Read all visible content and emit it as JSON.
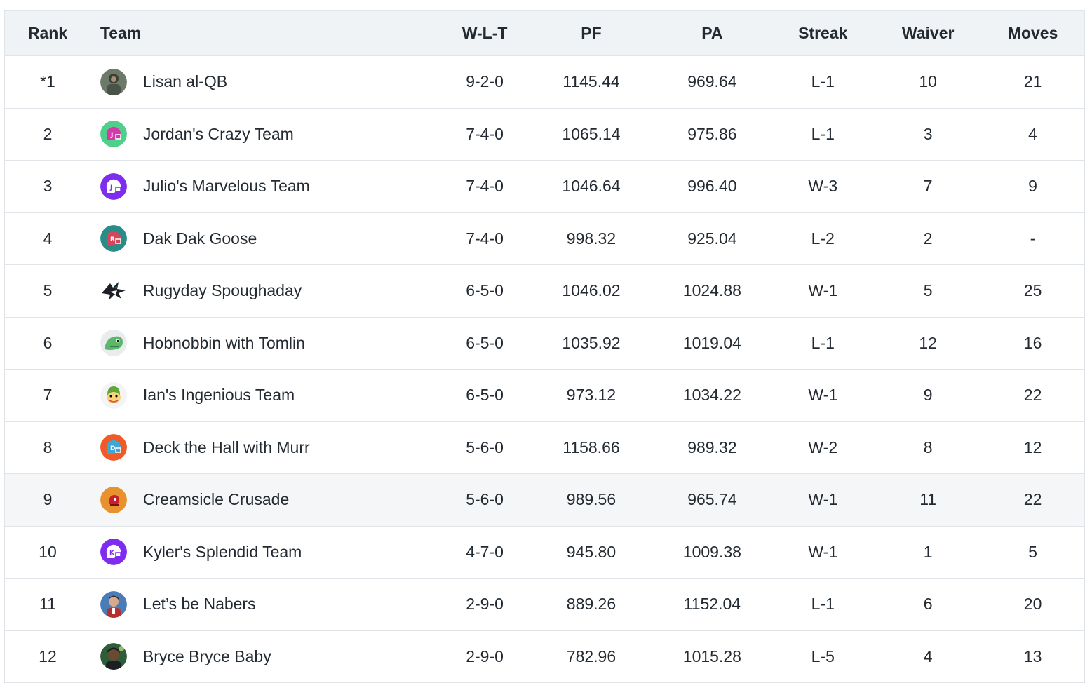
{
  "columns": {
    "rank": "Rank",
    "team": "Team",
    "wlt": "W-L-T",
    "pf": "PF",
    "pa": "PA",
    "streak": "Streak",
    "waiver": "Waiver",
    "moves": "Moves"
  },
  "rows": [
    {
      "rank": "*1",
      "team": "Lisan al-QB",
      "avatar_icon": "photo-avatar-icon",
      "wlt": "9-2-0",
      "pf": "1145.44",
      "pa": "969.64",
      "streak": "L-1",
      "waiver": "10",
      "moves": "21"
    },
    {
      "rank": "2",
      "team": "Jordan's Crazy Team",
      "avatar_icon": "helmet-avatar-icon",
      "wlt": "7-4-0",
      "pf": "1065.14",
      "pa": "975.86",
      "streak": "L-1",
      "waiver": "3",
      "moves": "4"
    },
    {
      "rank": "3",
      "team": "Julio's Marvelous Team",
      "avatar_icon": "helmet-avatar-icon",
      "wlt": "7-4-0",
      "pf": "1046.64",
      "pa": "996.40",
      "streak": "W-3",
      "waiver": "7",
      "moves": "9"
    },
    {
      "rank": "4",
      "team": "Dak Dak Goose",
      "avatar_icon": "helmet-avatar-icon",
      "wlt": "7-4-0",
      "pf": "998.32",
      "pa": "925.04",
      "streak": "L-2",
      "waiver": "2",
      "moves": "-"
    },
    {
      "rank": "5",
      "team": "Rugyday Spoughaday",
      "avatar_icon": "shark-logo-icon",
      "wlt": "6-5-0",
      "pf": "1046.02",
      "pa": "1024.88",
      "streak": "W-1",
      "waiver": "5",
      "moves": "25"
    },
    {
      "rank": "6",
      "team": "Hobnobbin with Tomlin",
      "avatar_icon": "dinosaur-avatar-icon",
      "wlt": "6-5-0",
      "pf": "1035.92",
      "pa": "1019.04",
      "streak": "L-1",
      "waiver": "12",
      "moves": "16"
    },
    {
      "rank": "7",
      "team": "Ian's Ingenious Team",
      "avatar_icon": "cartoon-avatar-icon",
      "wlt": "6-5-0",
      "pf": "973.12",
      "pa": "1034.22",
      "streak": "W-1",
      "waiver": "9",
      "moves": "22"
    },
    {
      "rank": "8",
      "team": "Deck the Hall with Murr",
      "avatar_icon": "helmet-avatar-icon",
      "wlt": "5-6-0",
      "pf": "1158.66",
      "pa": "989.32",
      "streak": "W-2",
      "waiver": "8",
      "moves": "12"
    },
    {
      "rank": "9",
      "team": "Creamsicle Crusade",
      "avatar_icon": "pirate-logo-icon",
      "wlt": "5-6-0",
      "pf": "989.56",
      "pa": "965.74",
      "streak": "W-1",
      "waiver": "11",
      "moves": "22"
    },
    {
      "rank": "10",
      "team": "Kyler's Splendid Team",
      "avatar_icon": "helmet-avatar-icon",
      "wlt": "4-7-0",
      "pf": "945.80",
      "pa": "1009.38",
      "streak": "W-1",
      "waiver": "1",
      "moves": "5"
    },
    {
      "rank": "11",
      "team": "Let’s be Nabers",
      "avatar_icon": "photo-avatar-icon",
      "wlt": "2-9-0",
      "pf": "889.26",
      "pa": "1152.04",
      "streak": "L-1",
      "waiver": "6",
      "moves": "20"
    },
    {
      "rank": "12",
      "team": "Bryce Bryce Baby",
      "avatar_icon": "photo-avatar-icon",
      "wlt": "2-9-0",
      "pf": "782.96",
      "pa": "1015.28",
      "streak": "L-5",
      "waiver": "4",
      "moves": "13"
    }
  ],
  "colors": {
    "header_bg": "#f0f3f5",
    "border": "#e0e4e9",
    "text": "#232a31",
    "highlight_row_bg": "#f5f6f7"
  }
}
